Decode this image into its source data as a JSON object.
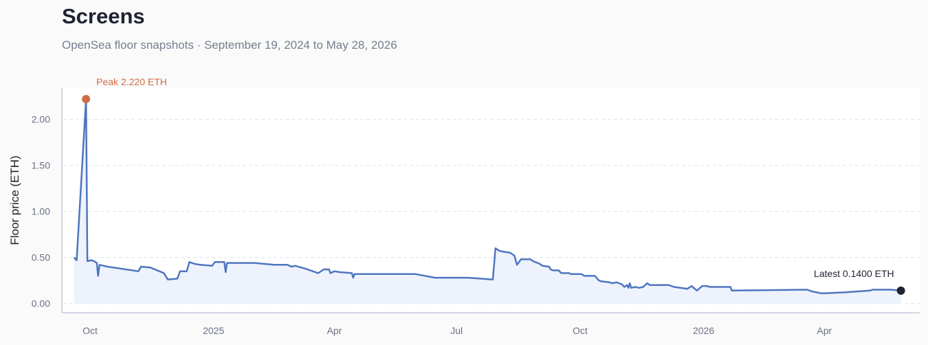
{
  "page": {
    "title": "Screens",
    "subtitle": "OpenSea floor snapshots · September 19, 2024 to May 28, 2026"
  },
  "colors": {
    "line": "#4f75be",
    "fill": "#edf2fc",
    "peak": "#cc6e44",
    "latest": "#22252e",
    "grid": "#e1e5ee",
    "axis": "#d4d6e6",
    "plot_bg": "#ffffff"
  },
  "chart_data": {
    "type": "line",
    "title": "Screens",
    "subtitle": "OpenSea floor snapshots · September 19, 2024 to May 28, 2026",
    "xlabel": "",
    "ylabel": "Floor price (ETH)",
    "x_range": [
      "2024-09-10",
      "2026-06-11"
    ],
    "ylim": [
      -0.1,
      2.34
    ],
    "y_ticks": [
      0,
      0.5,
      1.0,
      1.5,
      2.0
    ],
    "y_tick_labels": [
      "0.00",
      "0.50",
      "1.00",
      "1.50",
      "2.00"
    ],
    "x_ticks": [
      {
        "date": "2024-10-01",
        "label": "Oct"
      },
      {
        "date": "2025-01-01",
        "label": "2025"
      },
      {
        "date": "2025-04-01",
        "label": "Apr"
      },
      {
        "date": "2025-07-01",
        "label": "Jul"
      },
      {
        "date": "2025-10-01",
        "label": "Oct"
      },
      {
        "date": "2026-01-01",
        "label": "2026"
      },
      {
        "date": "2026-04-01",
        "label": "Apr"
      }
    ],
    "grid": true,
    "area_fill": true,
    "annotations": {
      "peak": {
        "date": "2024-09-28",
        "value": 2.22,
        "label": "Peak 2.220 ETH"
      },
      "latest": {
        "date": "2026-05-28",
        "value": 0.14,
        "label": "Latest 0.1400 ETH"
      }
    },
    "series": [
      {
        "points": [
          [
            "2024-09-19",
            0.5
          ],
          [
            "2024-09-21",
            0.47
          ],
          [
            "2024-09-28",
            2.22
          ],
          [
            "2024-09-29",
            0.46
          ],
          [
            "2024-10-02",
            0.47
          ],
          [
            "2024-10-04",
            0.46
          ],
          [
            "2024-10-06",
            0.44
          ],
          [
            "2024-10-07",
            0.3
          ],
          [
            "2024-10-08",
            0.42
          ],
          [
            "2024-10-14",
            0.4
          ],
          [
            "2024-11-06",
            0.35
          ],
          [
            "2024-11-08",
            0.4
          ],
          [
            "2024-11-15",
            0.39
          ],
          [
            "2024-11-25",
            0.33
          ],
          [
            "2024-11-28",
            0.26
          ],
          [
            "2024-12-05",
            0.27
          ],
          [
            "2024-12-07",
            0.35
          ],
          [
            "2024-12-12",
            0.35
          ],
          [
            "2024-12-14",
            0.45
          ],
          [
            "2024-12-18",
            0.43
          ],
          [
            "2024-12-22",
            0.42
          ],
          [
            "2024-12-31",
            0.41
          ],
          [
            "2025-01-02",
            0.45
          ],
          [
            "2025-01-09",
            0.45
          ],
          [
            "2025-01-10",
            0.34
          ],
          [
            "2025-01-11",
            0.44
          ],
          [
            "2025-02-01",
            0.44
          ],
          [
            "2025-02-08",
            0.43
          ],
          [
            "2025-02-15",
            0.42
          ],
          [
            "2025-02-25",
            0.42
          ],
          [
            "2025-02-28",
            0.4
          ],
          [
            "2025-03-03",
            0.41
          ],
          [
            "2025-03-05",
            0.4
          ],
          [
            "2025-03-10",
            0.38
          ],
          [
            "2025-03-20",
            0.33
          ],
          [
            "2025-03-24",
            0.37
          ],
          [
            "2025-03-28",
            0.37
          ],
          [
            "2025-03-29",
            0.33
          ],
          [
            "2025-04-01",
            0.35
          ],
          [
            "2025-04-05",
            0.34
          ],
          [
            "2025-04-14",
            0.33
          ],
          [
            "2025-04-15",
            0.28
          ],
          [
            "2025-04-16",
            0.32
          ],
          [
            "2025-05-31",
            0.32
          ],
          [
            "2025-06-15",
            0.28
          ],
          [
            "2025-06-28",
            0.28
          ],
          [
            "2025-07-10",
            0.28
          ],
          [
            "2025-07-28",
            0.26
          ],
          [
            "2025-07-30",
            0.6
          ],
          [
            "2025-08-02",
            0.57
          ],
          [
            "2025-08-06",
            0.56
          ],
          [
            "2025-08-10",
            0.55
          ],
          [
            "2025-08-13",
            0.52
          ],
          [
            "2025-08-15",
            0.42
          ],
          [
            "2025-08-18",
            0.48
          ],
          [
            "2025-08-25",
            0.48
          ],
          [
            "2025-08-27",
            0.46
          ],
          [
            "2025-09-01",
            0.43
          ],
          [
            "2025-09-03",
            0.41
          ],
          [
            "2025-09-08",
            0.4
          ],
          [
            "2025-09-09",
            0.37
          ],
          [
            "2025-09-11",
            0.36
          ],
          [
            "2025-09-15",
            0.36
          ],
          [
            "2025-09-17",
            0.33
          ],
          [
            "2025-09-23",
            0.33
          ],
          [
            "2025-09-24",
            0.32
          ],
          [
            "2025-10-02",
            0.32
          ],
          [
            "2025-10-04",
            0.3
          ],
          [
            "2025-10-12",
            0.3
          ],
          [
            "2025-10-15",
            0.25
          ],
          [
            "2025-10-17",
            0.24
          ],
          [
            "2025-10-23",
            0.23
          ],
          [
            "2025-10-25",
            0.22
          ],
          [
            "2025-10-28",
            0.23
          ],
          [
            "2025-11-01",
            0.21
          ],
          [
            "2025-11-03",
            0.18
          ],
          [
            "2025-11-05",
            0.2
          ],
          [
            "2025-11-06",
            0.17
          ],
          [
            "2025-11-07",
            0.22
          ],
          [
            "2025-11-08",
            0.17
          ],
          [
            "2025-11-11",
            0.18
          ],
          [
            "2025-11-14",
            0.17
          ],
          [
            "2025-11-17",
            0.18
          ],
          [
            "2025-11-20",
            0.22
          ],
          [
            "2025-11-22",
            0.2
          ],
          [
            "2025-12-06",
            0.2
          ],
          [
            "2025-12-10",
            0.18
          ],
          [
            "2025-12-20",
            0.16
          ],
          [
            "2025-12-23",
            0.19
          ],
          [
            "2025-12-27",
            0.14
          ],
          [
            "2025-12-31",
            0.19
          ],
          [
            "2026-01-03",
            0.19
          ],
          [
            "2026-01-06",
            0.18
          ],
          [
            "2026-01-21",
            0.18
          ],
          [
            "2026-01-22",
            0.14
          ],
          [
            "2026-03-19",
            0.15
          ],
          [
            "2026-03-23",
            0.13
          ],
          [
            "2026-03-30",
            0.11
          ],
          [
            "2026-04-15",
            0.12
          ],
          [
            "2026-05-05",
            0.14
          ],
          [
            "2026-05-07",
            0.15
          ],
          [
            "2026-05-20",
            0.15
          ],
          [
            "2026-05-28",
            0.14
          ]
        ]
      }
    ]
  }
}
